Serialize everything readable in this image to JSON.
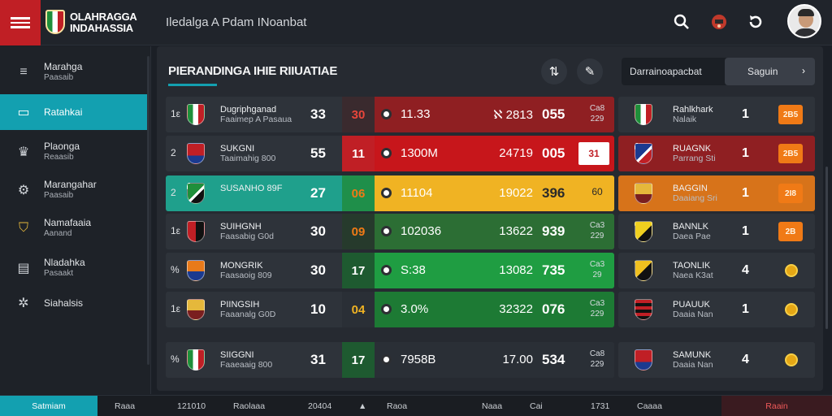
{
  "app": {
    "brand_line1": "OLAHRAGGA",
    "brand_line2": "INDAHASSIA",
    "page_heading": "Iledalga A Pdam INoanbat"
  },
  "colors": {
    "accent": "#13a0b0",
    "brand_red": "#c01f25",
    "orange": "#f07a16"
  },
  "icons": {
    "search": "search-icon",
    "trophy": "trophy-icon",
    "refresh": "refresh-icon",
    "user": "avatar"
  },
  "sidebar": {
    "items": [
      {
        "label": "Marahga",
        "sub": "Paasaib",
        "icon": "list-icon"
      },
      {
        "label": "Ratahkai",
        "sub": "",
        "icon": "table-icon"
      },
      {
        "label": "Plaonga",
        "sub": "Reaasib",
        "icon": "crown-icon"
      },
      {
        "label": "Marangahar",
        "sub": "Paasaib",
        "icon": "gear-icon"
      },
      {
        "label": "Namafaaia",
        "sub": "Aanand",
        "icon": "shield-icon"
      },
      {
        "label": "Nladahka",
        "sub": "Pasaakt",
        "icon": "document-icon"
      },
      {
        "label": "Siahalsis",
        "sub": "",
        "icon": "network-icon"
      }
    ]
  },
  "panel": {
    "title": "PIERANDINGA IHIE RIIUATIAE",
    "filter_label": "Darrainoapacbat",
    "filter_value": "Saguin"
  },
  "rows": [
    {
      "rank": "1ε",
      "team": "Dugriphganad",
      "sub": "Faaimep A Pasaua",
      "pts": "33",
      "cola": "30",
      "v1": "11.33",
      "v2": "ℵ 2813",
      "v3": "055",
      "v4a": "Ca8",
      "v4b": "229",
      "v4box": false,
      "bar": "#8f1f22",
      "cola_bg": "#3a2a2e",
      "cola_color": "#e8463b",
      "crest": "it"
    },
    {
      "rank": "2",
      "team": "SUKGNI",
      "sub": "Taaimahig 800",
      "pts": "55",
      "cola": "11",
      "v1": "1300M",
      "v2": "24719",
      "v3": "005",
      "v4a": "31",
      "v4b": "",
      "v4box": true,
      "bar": "#c7161b",
      "cola_bg": "#c01f25",
      "cola_color": "#ffffff",
      "crest": "red"
    },
    {
      "rank": "2",
      "team": "SUSANHO 89F",
      "sub": "",
      "pts": "27",
      "cola": "06",
      "v1": "11104",
      "v2": "19022",
      "v3": "396",
      "v4a": "60",
      "v4b": "",
      "v4box": false,
      "bar": "#f0b323",
      "cola_bg": "#1f8f4a",
      "cola_color": "#f07a16",
      "crest": "green",
      "highlight": true
    },
    {
      "rank": "1ε",
      "team": "SUIHGNH",
      "sub": "Faasabig G0d",
      "pts": "30",
      "cola": "09",
      "v1": "102036",
      "v2": "13622",
      "v3": "939",
      "v4a": "Ca3",
      "v4b": "229",
      "v4box": false,
      "bar": "#2c6e34",
      "cola_bg": "#263a2c",
      "cola_color": "#f07a16",
      "crest": "redblack"
    },
    {
      "rank": "%",
      "team": "MONGRIK",
      "sub": "Faasaoig 809",
      "pts": "30",
      "cola": "17",
      "v1": "S:38",
      "v2": "13082",
      "v3": "735",
      "v4a": "Ca3",
      "v4b": "29",
      "v4box": false,
      "bar": "#1f9d42",
      "cola_bg": "#1e5a30",
      "cola_color": "#ffffff",
      "crest": "orange"
    },
    {
      "rank": "1ε",
      "team": "PIINGSIH",
      "sub": "Faaanalg G0D",
      "pts": "10",
      "cola": "04",
      "v1": "3.0%",
      "v2": "32322",
      "v3": "076",
      "v4a": "Ca3",
      "v4b": "229",
      "v4box": false,
      "bar": "#1d7a34",
      "cola_bg": "#2a2f36",
      "cola_color": "#f0b323",
      "crest": "gold"
    },
    {
      "rank": "%",
      "team": "SIIGGNI",
      "sub": "Faaeaaig 800",
      "pts": "31",
      "cola": "17",
      "v1": "7958B",
      "v2": "17.00",
      "v3": "534",
      "v4a": "Ca8",
      "v4b": "229",
      "v4box": false,
      "bar": "#2a2f36",
      "cola_bg": "#1e5a30",
      "cola_color": "#ffffff",
      "crest": "it"
    }
  ],
  "right_rows": [
    {
      "team": "Rahlkhark",
      "sub": "Nalaik",
      "num": "1",
      "badge": "2B5",
      "kind": "badge",
      "crest": "it",
      "bg": "#2e333a"
    },
    {
      "team": "RUAGNK",
      "sub": "Parrang Sti",
      "num": "1",
      "badge": "2B5",
      "kind": "badge",
      "crest": "blue",
      "bg": "#8f1f22"
    },
    {
      "team": "BAGGIN",
      "sub": "Daaiang Sri",
      "num": "1",
      "badge": "2I8",
      "kind": "badge",
      "crest": "gold",
      "bg": "#d7731a"
    },
    {
      "team": "BANNLK",
      "sub": "Daea Pae",
      "num": "1",
      "badge": "2B",
      "kind": "badge",
      "crest": "yellow",
      "bg": "#2e333a"
    },
    {
      "team": "TAONLIK",
      "sub": "Naea K3at",
      "num": "4",
      "badge": "",
      "kind": "coin",
      "crest": "yellowblack",
      "bg": "#2e333a"
    },
    {
      "team": "PUAUUK",
      "sub": "Daaia Nan",
      "num": "1",
      "badge": "",
      "kind": "coin",
      "crest": "redstripe",
      "bg": "#2e333a"
    },
    {
      "team": "SAMUNK",
      "sub": "Daaia Nan",
      "num": "4",
      "badge": "",
      "kind": "coin",
      "crest": "red",
      "bg": "#2e333a"
    }
  ],
  "bottombar": {
    "items": [
      "Satmiam",
      "Raaa",
      "121010",
      "Raolaaa",
      "20404",
      "Raoa",
      "Naaa",
      "Cai",
      "1731",
      "Caaaa",
      "Raain"
    ],
    "triangle": "▲"
  }
}
